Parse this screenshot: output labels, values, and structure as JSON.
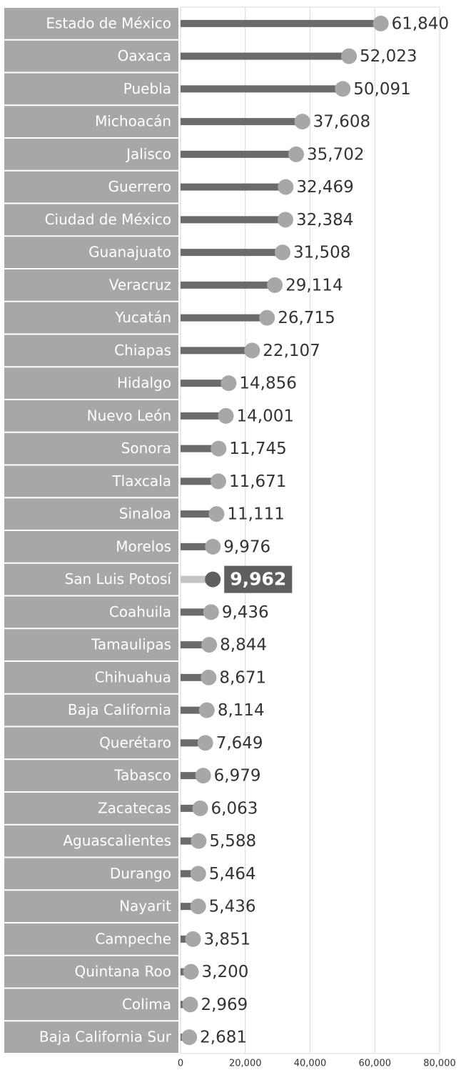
{
  "chart_data": {
    "type": "lollipop",
    "categories": [
      "Estado de México",
      "Oaxaca",
      "Puebla",
      "Michoacán",
      "Jalisco",
      "Guerrero",
      "Ciudad de México",
      "Guanajuato",
      "Veracruz",
      "Yucatán",
      "Chiapas",
      "Hidalgo",
      "Nuevo León",
      "Sonora",
      "Tlaxcala",
      "Sinaloa",
      "Morelos",
      "San Luis Potosí",
      "Coahuila",
      "Tamaulipas",
      "Chihuahua",
      "Baja California",
      "Querétaro",
      "Tabasco",
      "Zacatecas",
      "Aguascalientes",
      "Durango",
      "Nayarit",
      "Campeche",
      "Quintana Roo",
      "Colima",
      "Baja California Sur"
    ],
    "values": [
      61840,
      52023,
      50091,
      37608,
      35702,
      32469,
      32384,
      31508,
      29114,
      26715,
      22107,
      14856,
      14001,
      11745,
      11671,
      11111,
      9976,
      9962,
      9436,
      8844,
      8671,
      8114,
      7649,
      6979,
      6063,
      5588,
      5464,
      5436,
      3851,
      3200,
      2969,
      2681
    ],
    "value_labels": [
      "61,840",
      "52,023",
      "50,091",
      "37,608",
      "35,702",
      "32,469",
      "32,384",
      "31,508",
      "29,114",
      "26,715",
      "22,107",
      "14,856",
      "14,001",
      "11,745",
      "11,671",
      "11,111",
      "9,976",
      "9,962",
      "9,436",
      "8,844",
      "8,671",
      "8,114",
      "7,649",
      "6,979",
      "6,063",
      "5,588",
      "5,464",
      "5,436",
      "3,851",
      "3,200",
      "2,969",
      "2,681"
    ],
    "color": "#6b6b6b",
    "marker_color": "#a7a7a9",
    "highlight_index": 17,
    "highlight_color": "#5f5f5f",
    "xlim": [
      0,
      80000
    ],
    "xticks": [
      0,
      {
        "value": 20000,
        "label": "20,000"
      },
      {
        "value": 40000,
        "label": "40,000"
      },
      {
        "value": 60000,
        "label": "60,000"
      },
      {
        "value": 80000,
        "label": "80,000"
      }
    ],
    "grid": true
  }
}
